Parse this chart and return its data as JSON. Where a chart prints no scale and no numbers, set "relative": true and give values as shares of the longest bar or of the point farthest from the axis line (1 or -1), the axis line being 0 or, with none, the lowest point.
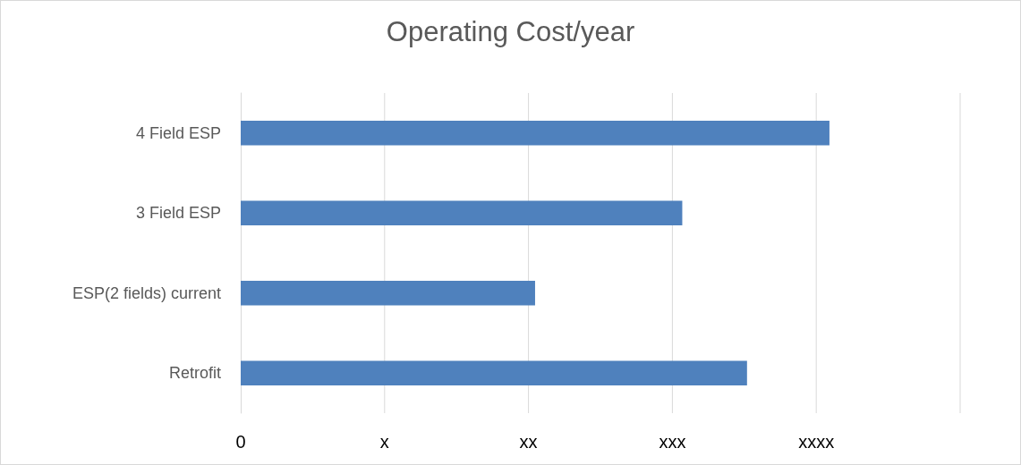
{
  "chart_data": {
    "type": "bar",
    "title": "Operating Cost/year",
    "orientation": "horizontal",
    "categories": [
      "4 Field ESP",
      "3 Field ESP",
      "ESP(2 fields) current",
      "Retrofit"
    ],
    "values": [
      1,
      0.75,
      0.5,
      0.86
    ],
    "color": "#4f81bd",
    "relative": true,
    "annotations": [
      "0",
      "x",
      "xx",
      "xxx",
      "xxxx"
    ],
    "grid": "x"
  }
}
